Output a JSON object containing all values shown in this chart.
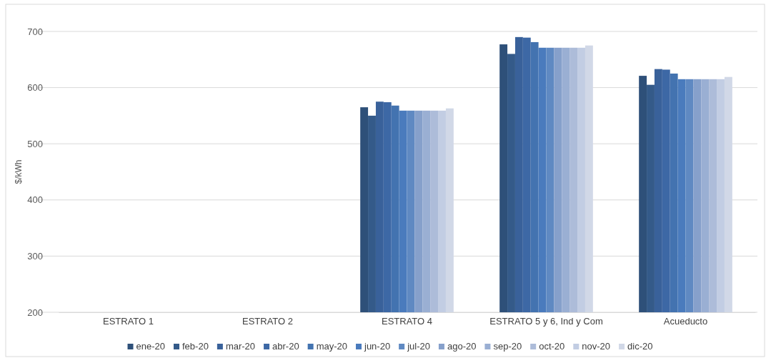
{
  "chart_data": {
    "type": "bar",
    "ylabel": "$/kWh",
    "categories": [
      "ESTRATO 1",
      "ESTRATO 2",
      "ESTRATO 4",
      "ESTRATO 5 y 6, Ind y Com",
      "Acueducto"
    ],
    "series": [
      {
        "name": "ene-20",
        "color": "#2e5079",
        "values": [
          null,
          null,
          565,
          677,
          621
        ]
      },
      {
        "name": "feb-20",
        "color": "#345a89",
        "values": [
          null,
          null,
          550,
          660,
          605
        ]
      },
      {
        "name": "mar-20",
        "color": "#39619a",
        "values": [
          null,
          null,
          575,
          690,
          633
        ]
      },
      {
        "name": "abr-20",
        "color": "#3d68a5",
        "values": [
          null,
          null,
          574,
          689,
          632
        ]
      },
      {
        "name": "may-20",
        "color": "#4373b0",
        "values": [
          null,
          null,
          568,
          681,
          625
        ]
      },
      {
        "name": "jun-20",
        "color": "#4a7bbd",
        "values": [
          null,
          null,
          559,
          671,
          615
        ]
      },
      {
        "name": "jul-20",
        "color": "#5f89c2",
        "values": [
          null,
          null,
          559,
          671,
          615
        ]
      },
      {
        "name": "ago-20",
        "color": "#86a0cb",
        "values": [
          null,
          null,
          559,
          671,
          615
        ]
      },
      {
        "name": "sep-20",
        "color": "#9aafd3",
        "values": [
          null,
          null,
          559,
          671,
          615
        ]
      },
      {
        "name": "oct-20",
        "color": "#adbcd9",
        "values": [
          null,
          null,
          559,
          671,
          615
        ]
      },
      {
        "name": "nov-20",
        "color": "#c2cde3",
        "values": [
          null,
          null,
          559,
          671,
          615
        ]
      },
      {
        "name": "dic-20",
        "color": "#d1d8e7",
        "values": [
          null,
          null,
          563,
          675,
          619
        ]
      }
    ],
    "ylim": [
      200,
      700
    ],
    "yticks": [
      200,
      300,
      400,
      500,
      600,
      700
    ],
    "grid": "y",
    "legend": "bottom"
  }
}
